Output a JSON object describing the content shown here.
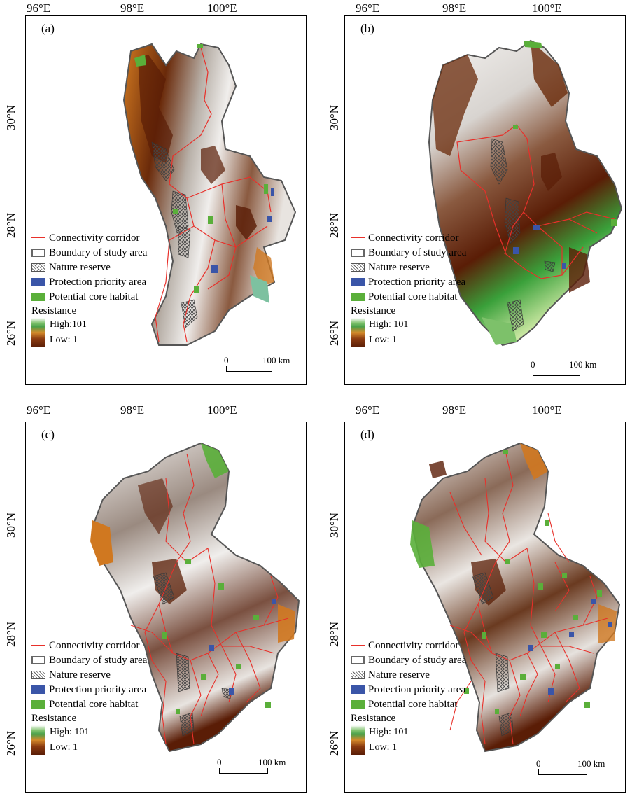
{
  "panels": [
    {
      "label": "(a)",
      "lon_ticks": [
        "96°E",
        "98°E",
        "100°E"
      ],
      "lat_ticks": [
        "30°N",
        "28°N",
        "26°N"
      ],
      "legend": {
        "corridor": "Connectivity corridor",
        "boundary": "Boundary of study area",
        "reserve": "Nature reserve",
        "priority": "Protection priority area",
        "habitat": "Potential core habitat",
        "resistance_title": "Resistance",
        "high": "High:101",
        "low": "Low: 1"
      },
      "scale": {
        "zero": "0",
        "dist": "100 km"
      }
    },
    {
      "label": "(b)",
      "lon_ticks": [
        "96°E",
        "98°E",
        "100°E"
      ],
      "lat_ticks": [
        "30°N",
        "28°N",
        "26°N"
      ],
      "legend": {
        "corridor": "Connectivity corridor",
        "boundary": "Boundary of study area",
        "reserve": "Nature reserve",
        "priority": "Protection priority area",
        "habitat": "Potential core habitat",
        "resistance_title": "Resistance",
        "high": "High: 101",
        "low": "Low: 1"
      },
      "scale": {
        "zero": "0",
        "dist": "100 km"
      }
    },
    {
      "label": "(c)",
      "lon_ticks": [
        "96°E",
        "98°E",
        "100°E"
      ],
      "lat_ticks": [
        "30°N",
        "28°N",
        "26°N"
      ],
      "legend": {
        "corridor": "Connectivity corridor",
        "boundary": "Boundary of study area",
        "reserve": "Nature reserve",
        "priority": "Protection priority area",
        "habitat": "Potential core habitat",
        "resistance_title": "Resistance",
        "high": "High: 101",
        "low": "Low: 1"
      },
      "scale": {
        "zero": "0",
        "dist": "100 km"
      }
    },
    {
      "label": "(d)",
      "lon_ticks": [
        "96°E",
        "98°E",
        "100°E"
      ],
      "lat_ticks": [
        "30°N",
        "28°N",
        "26°N"
      ],
      "legend": {
        "corridor": "Connectivity corridor",
        "boundary": "Boundary of study area",
        "reserve": "Nature reserve",
        "priority": "Protection priority area",
        "habitat": "Potential core habitat",
        "resistance_title": "Resistance",
        "high": "High: 101",
        "low": "Low: 1"
      },
      "scale": {
        "zero": "0",
        "dist": "100 km"
      }
    }
  ],
  "colors": {
    "corridor": "#e8302a",
    "boundary": "#666666",
    "priority": "#3a55a8",
    "habitat": "#5aaf3a",
    "resistance_high": "#ffffff",
    "resistance_low": "#5a1d06"
  }
}
